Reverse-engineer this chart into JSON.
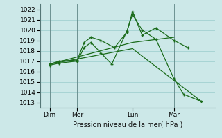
{
  "background_color": "#cce8e8",
  "grid_color": "#99cccc",
  "line_color": "#1a6b1a",
  "marker_color": "#1a6b1a",
  "xlabel": "Pression niveau de la mer( hPa )",
  "ylim": [
    1012.5,
    1022.5
  ],
  "yticks": [
    1013,
    1014,
    1015,
    1016,
    1017,
    1018,
    1019,
    1020,
    1021,
    1022
  ],
  "xtick_labels": [
    "Dim",
    "Mer",
    "Lun",
    "Mar"
  ],
  "xtick_positions": [
    0.5,
    2.5,
    6.5,
    9.5
  ],
  "vline_positions": [
    0.5,
    2.5,
    6.5,
    9.5
  ],
  "xlim": [
    -0.2,
    12.5
  ],
  "line1": {
    "x": [
      0.5,
      1.2,
      2.5,
      3.0,
      3.5,
      4.2,
      5.2,
      6.1,
      6.5,
      7.2,
      8.2,
      9.5,
      10.5
    ],
    "y": [
      1016.7,
      1017.0,
      1017.1,
      1018.8,
      1019.3,
      1019.0,
      1018.3,
      1019.8,
      1021.8,
      1019.5,
      1020.2,
      1019.0,
      1018.3
    ]
  },
  "line2": {
    "x": [
      0.5,
      1.2,
      2.5,
      3.0,
      3.5,
      4.2,
      5.0,
      6.1,
      6.5,
      7.2,
      8.2,
      9.5,
      10.2,
      11.5
    ],
    "y": [
      1016.6,
      1016.8,
      1017.0,
      1018.3,
      1018.8,
      1017.8,
      1016.7,
      1019.9,
      1021.5,
      1020.0,
      1019.1,
      1015.3,
      1013.8,
      1013.1
    ]
  },
  "trend1": {
    "x": [
      0.5,
      6.5,
      9.5
    ],
    "y": [
      1016.7,
      1018.8,
      1019.3
    ]
  },
  "trend2": {
    "x": [
      0.5,
      6.5,
      11.5
    ],
    "y": [
      1016.7,
      1018.2,
      1013.1
    ]
  }
}
